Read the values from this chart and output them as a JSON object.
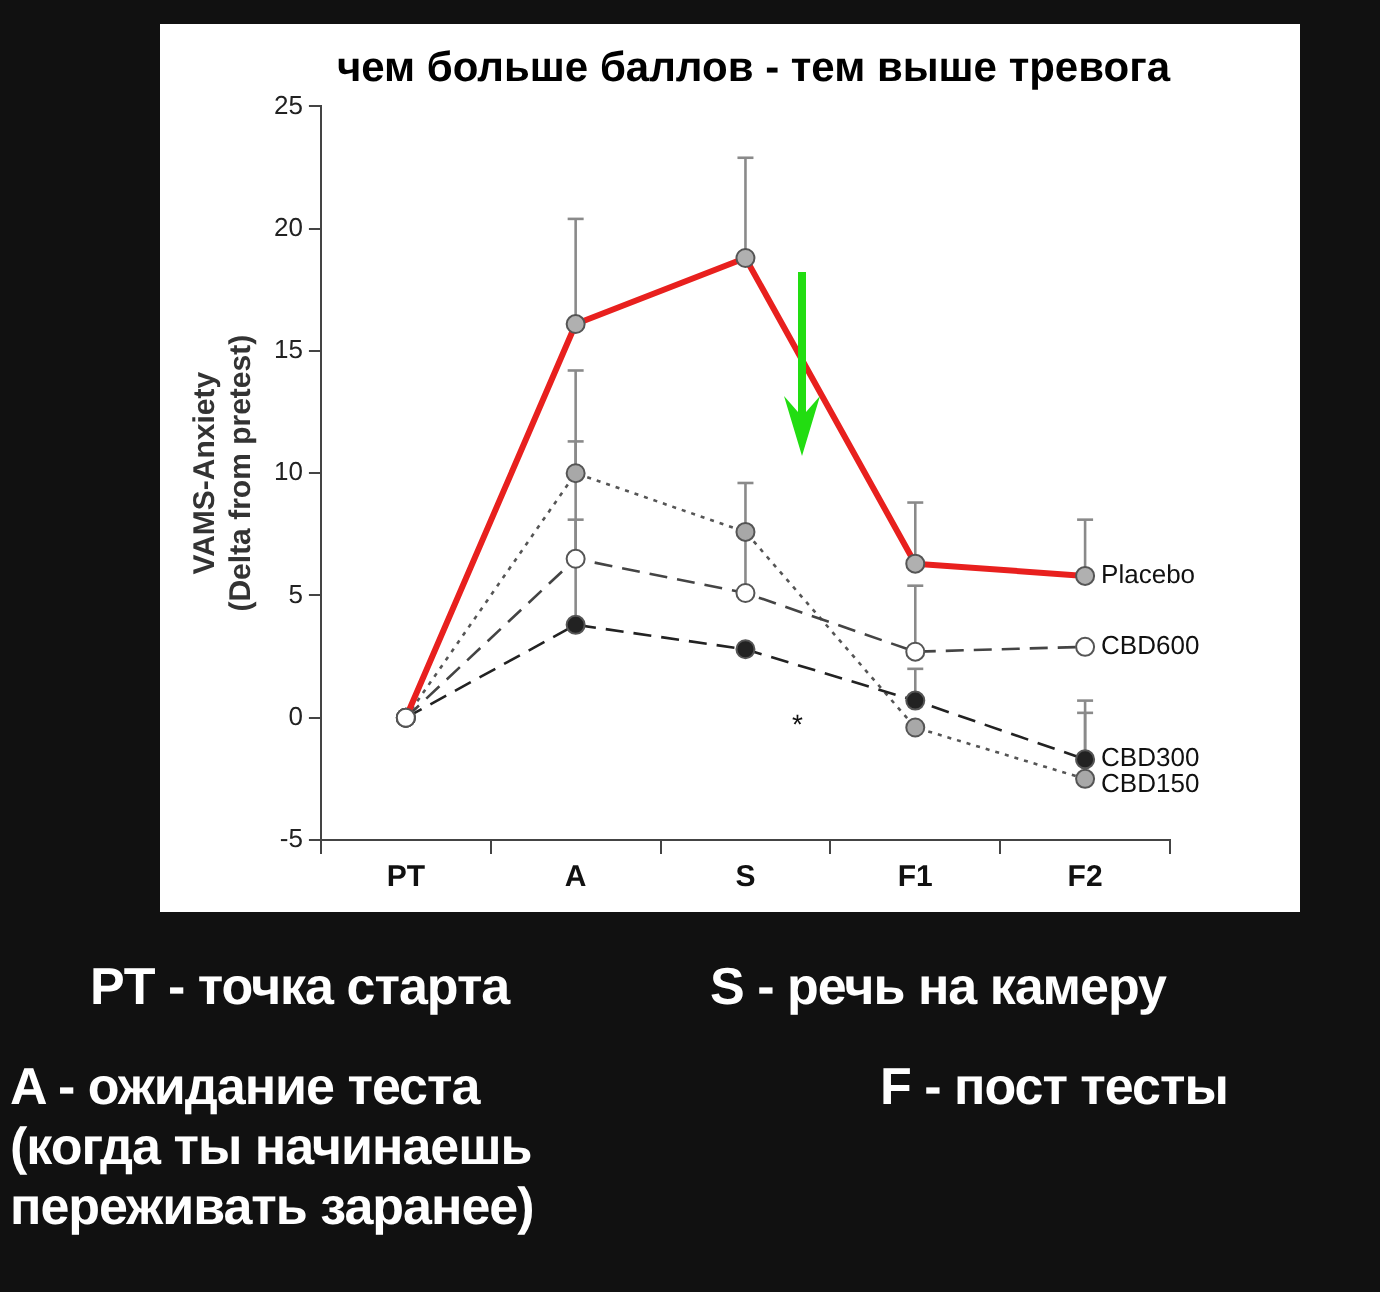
{
  "chart_data": {
    "type": "line",
    "title": "чем больше баллов - тем выше тревога",
    "ylabel": "VAMS-Anxiety\n(Delta from pretest)",
    "categories": [
      "PT",
      "A",
      "S",
      "F1",
      "F2"
    ],
    "ylim": [
      -5,
      25
    ],
    "yticks": [
      -5,
      0,
      5,
      10,
      15,
      20,
      25
    ],
    "grid": false,
    "legend": false,
    "marker": "circle",
    "series": [
      {
        "name": "Placebo",
        "color": "#e8201e",
        "colors": [
          "#ffffff",
          "#b0b0b0",
          "#b0b0b0",
          "#b0b0b0",
          "#b0b0b0"
        ],
        "line_style": "solid",
        "values": [
          0,
          16.1,
          18.8,
          6.3,
          5.8
        ],
        "errors": [
          null,
          [
            16.1,
            20.4
          ],
          [
            18.8,
            22.9
          ],
          [
            6.3,
            8.8
          ],
          [
            5.8,
            8.1
          ]
        ]
      },
      {
        "name": "CBD600",
        "color": "#444444",
        "colors": [
          "#ffffff",
          "#ffffff",
          "#ffffff",
          "#ffffff",
          "#ffffff"
        ],
        "line_style": "dashed",
        "values": [
          0,
          6.5,
          5.1,
          2.7,
          2.9
        ],
        "errors": [
          null,
          [
            6.5,
            11.3
          ],
          [
            5.1,
            9.6
          ],
          [
            2.7,
            5.4
          ],
          null
        ]
      },
      {
        "name": "CBD300",
        "color": "#222222",
        "colors": [
          "#ffffff",
          "#222222",
          "#222222",
          "#222222",
          "#222222"
        ],
        "line_style": "dashed",
        "values": [
          0,
          3.8,
          2.8,
          0.7,
          -1.7
        ],
        "errors": [
          null,
          [
            3.8,
            8.1
          ],
          null,
          [
            0.7,
            2.0
          ],
          [
            -1.7,
            0.7
          ]
        ]
      },
      {
        "name": "CBD150",
        "color": "#555555",
        "colors": [
          "#ffffff",
          "#a8a8a8",
          "#a8a8a8",
          "#a8a8a8",
          "#a8a8a8"
        ],
        "line_style": "dotted",
        "values": [
          0,
          10.0,
          7.6,
          -0.4,
          -2.5
        ],
        "errors": [
          null,
          [
            10.0,
            14.2
          ],
          null,
          null,
          [
            -2.5,
            0.2
          ]
        ]
      }
    ],
    "annotations": [
      "*",
      "PT - точка старта",
      "S - речь на камеру",
      "A - ожидание теста\n(когда ты начинаешь\nпереживать заранее)",
      "F - пост тесты"
    ]
  }
}
